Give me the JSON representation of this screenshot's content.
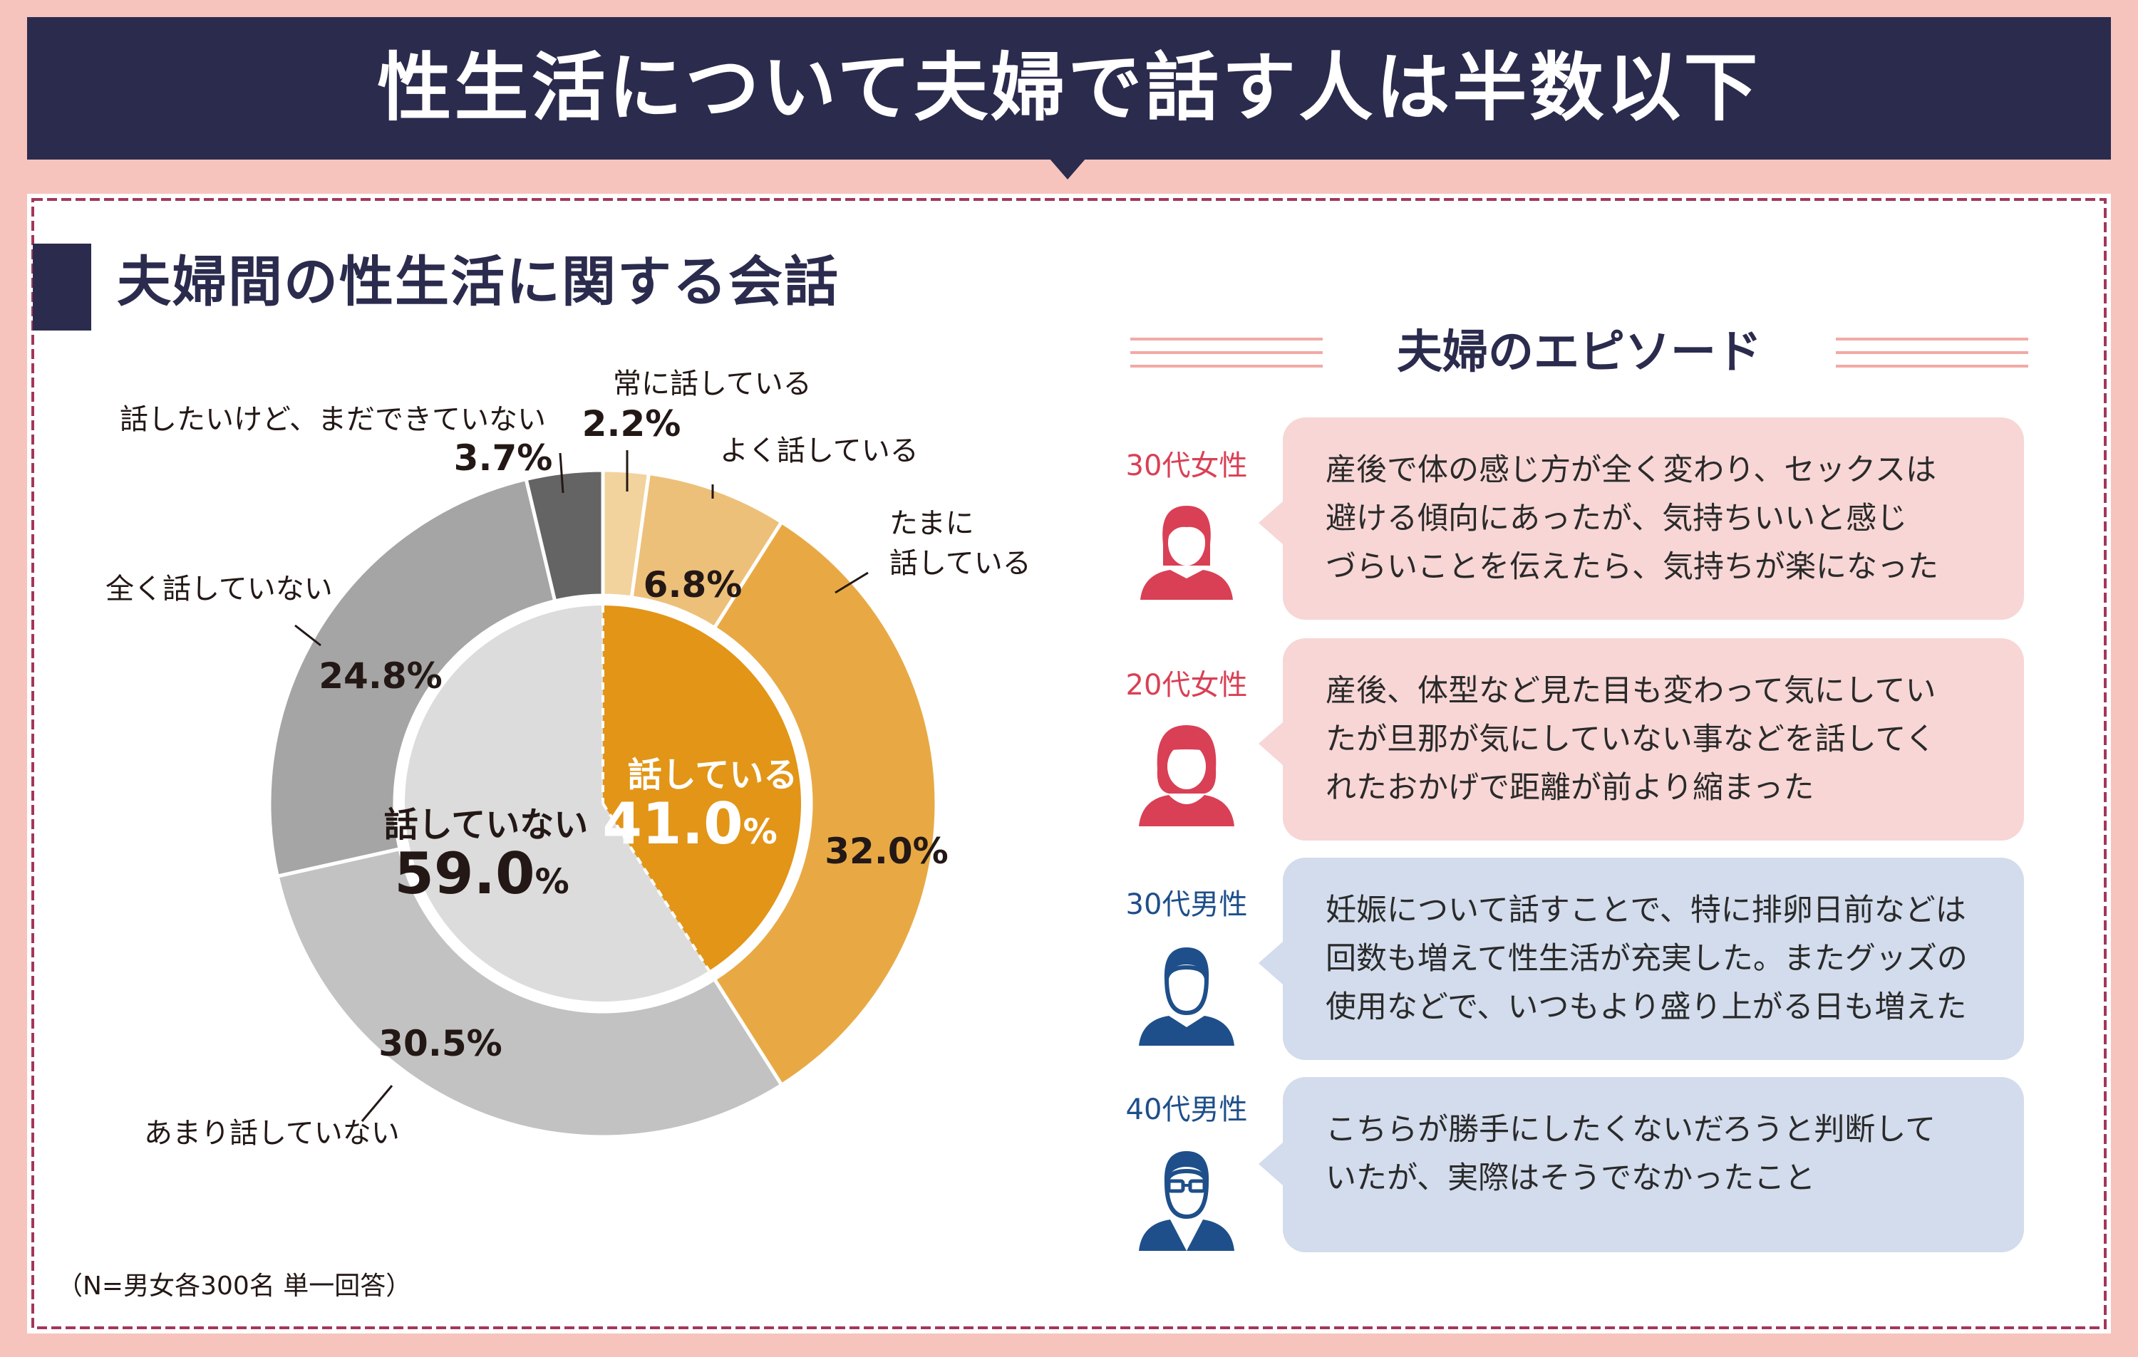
{
  "header": {
    "title": "性生活について夫婦で話す人は半数以下"
  },
  "section": {
    "title": "夫婦間の性生活に関する会話"
  },
  "chart_data": {
    "type": "pie",
    "subtype": "donut with inner summary ring",
    "outer": [
      {
        "label": "常に話している",
        "value": 2.2,
        "display": "2.2%",
        "color": "#f2d39d"
      },
      {
        "label": "よく話している",
        "value": 6.8,
        "display": "6.8%",
        "color": "#edc079"
      },
      {
        "label_lines": [
          "たまに",
          "話している"
        ],
        "value": 32.0,
        "display": "32.0%",
        "color": "#e8a944"
      },
      {
        "label": "あまり話していない",
        "value": 30.5,
        "display": "30.5%",
        "color": "#c2c2c2"
      },
      {
        "label": "全く話していない",
        "value": 24.8,
        "display": "24.8%",
        "color": "#a5a5a5"
      },
      {
        "label": "話したいけど、まだできていない",
        "value": 3.7,
        "display": "3.7%",
        "color": "#646464"
      }
    ],
    "inner": [
      {
        "label": "話している",
        "value": 41.0,
        "display_number": "41.0",
        "unit": "%",
        "color": "#e29517"
      },
      {
        "label": "話していない",
        "value": 59.0,
        "display_number": "59.0",
        "unit": "%",
        "color": "#dcdcdc"
      }
    ]
  },
  "footnote": "（N=男女各300名 単一回答）",
  "episodes": {
    "title": "夫婦のエピソード",
    "items": [
      {
        "age": "30代女性",
        "icon": "woman-long-hair-icon",
        "text": "産後で体の感じ方が全く変わり、セックスは\n避ける傾向にあったが、気持ちいいと感じ\nづらいことを伝えたら、気持ちが楽になった"
      },
      {
        "age": "20代女性",
        "icon": "woman-bob-hair-icon",
        "text": "産後、体型など見た目も変わって気にしてい\nたが旦那が気にしていない事などを話してく\nれたおかげで距離が前より縮まった"
      },
      {
        "age": "30代男性",
        "icon": "man-icon",
        "text": "妊娠について話すことで、特に排卵日前などは\n回数も増えて性生活が充実した。またグッズの\n使用などで、いつもより盛り上がる日も増えた"
      },
      {
        "age": "40代男性",
        "icon": "man-glasses-suit-icon",
        "text": "こちらが勝手にしたくないだろうと判断して\nいたが、実際はそうでなかったこと"
      }
    ]
  },
  "colors": {
    "navy": "#2b2b4e",
    "pink_bg": "#f6c4bd",
    "female": "#d94055",
    "male": "#1e4f8a",
    "bubble_pink": "#f7d6d5",
    "bubble_blue": "#d2dcec"
  }
}
